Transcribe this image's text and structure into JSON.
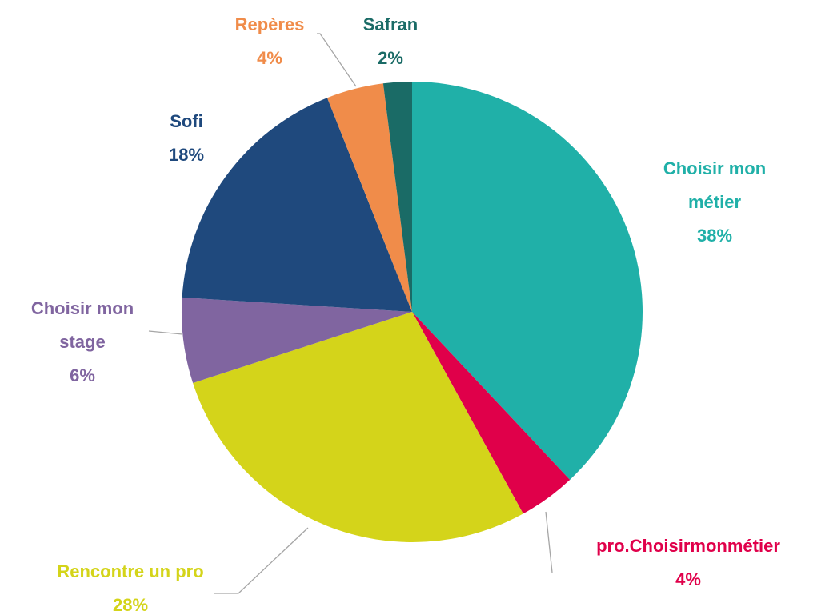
{
  "chart_data": {
    "type": "pie",
    "categories": [
      "Choisir mon métier",
      "pro.Choisirmonmétier",
      "Rencontre un pro",
      "Choisir mon stage",
      "Sofi",
      "Repères",
      "Safran"
    ],
    "values": [
      38,
      4,
      28,
      6,
      18,
      4,
      2
    ],
    "value_labels": [
      "38%",
      "4%",
      "28%",
      "6%",
      "18%",
      "4%",
      "2%"
    ],
    "colors": [
      "#20b0a8",
      "#e0004a",
      "#d4d41a",
      "#8065a0",
      "#1f497d",
      "#f08c4a",
      "#1a6b66"
    ]
  }
}
